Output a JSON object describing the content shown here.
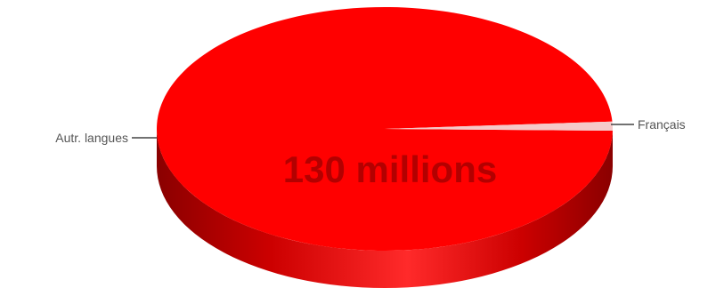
{
  "chart_data": {
    "type": "pie",
    "center_label": "130 millions",
    "slices": [
      {
        "name": "Autr. langues",
        "value": 98.8,
        "color": "#ff0000"
      },
      {
        "name": "Français",
        "value": 1.2,
        "color": "#f5c9c9"
      }
    ],
    "legend": "none"
  }
}
